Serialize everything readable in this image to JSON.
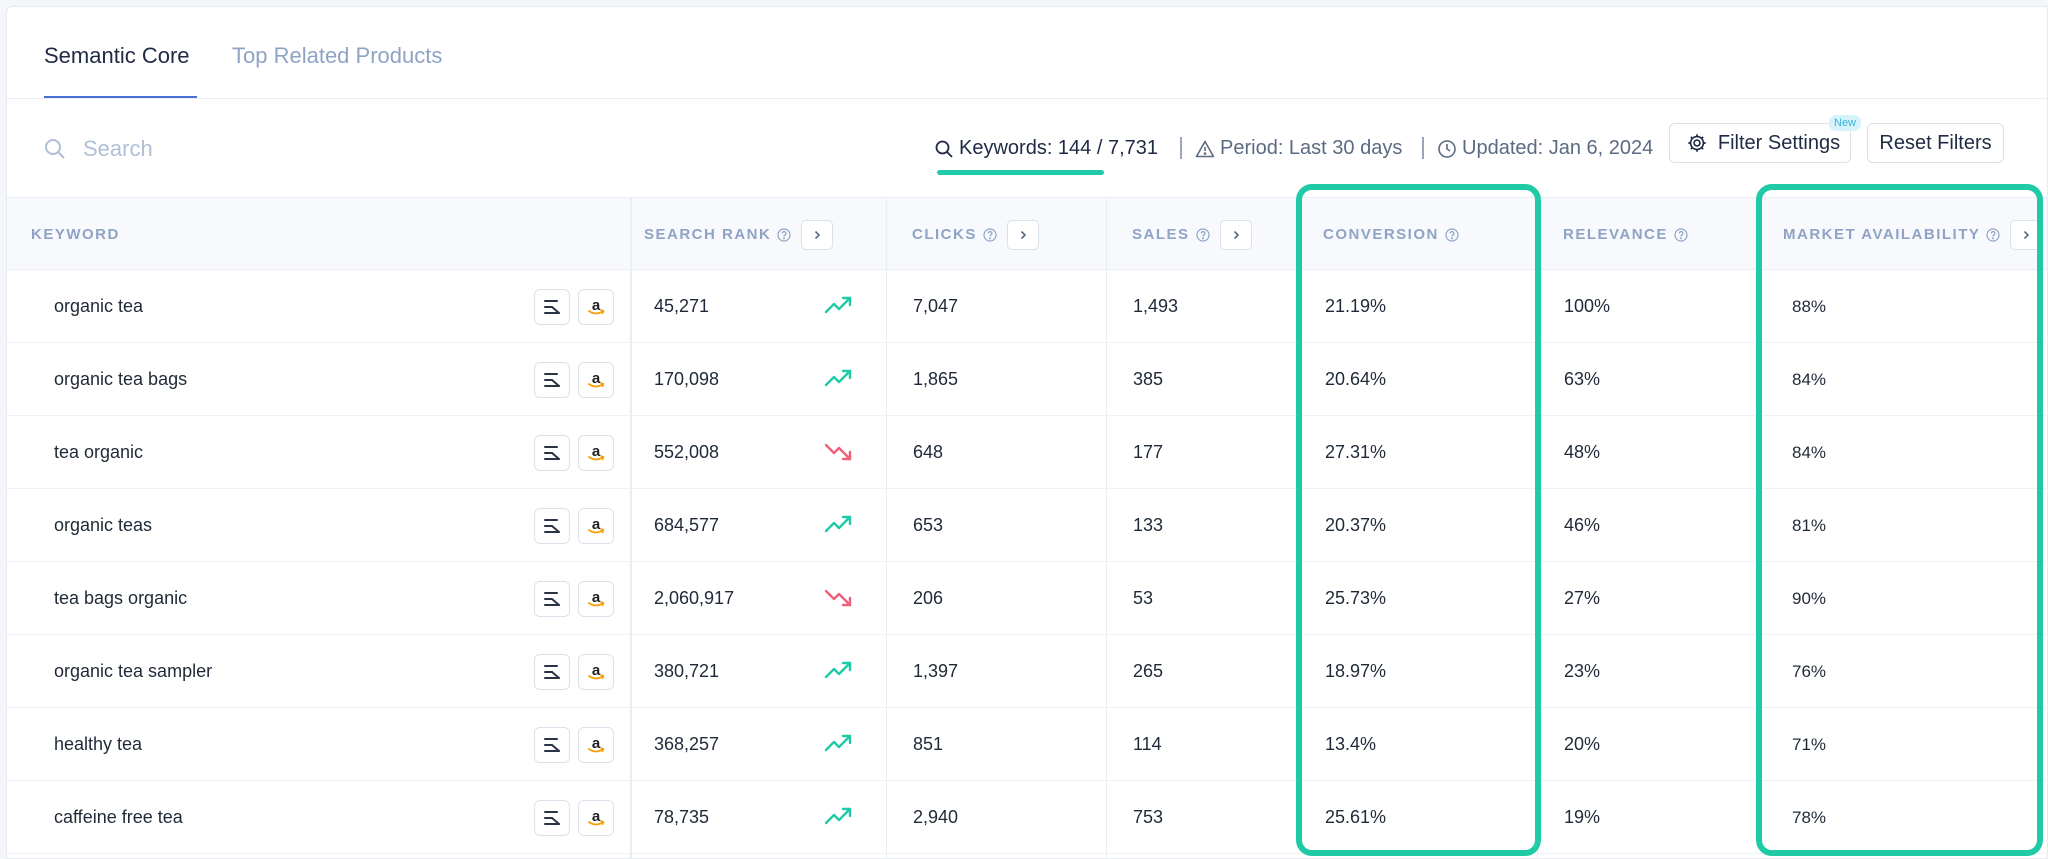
{
  "tabs": [
    {
      "label": "Semantic Core",
      "active": true
    },
    {
      "label": "Top Related Products",
      "active": false
    }
  ],
  "toolbar": {
    "search_placeholder": "Search",
    "keywords": "Keywords: 144 / 7,731",
    "period": "Period: Last 30 days",
    "updated": "Updated: Jan 6, 2024",
    "filter_settings": "Filter Settings",
    "new_badge": "New",
    "reset_filters": "Reset Filters"
  },
  "columns": {
    "keyword": "KEYWORD",
    "search_rank": "SEARCH RANK",
    "clicks": "CLICKS",
    "sales": "SALES",
    "conversion": "CONVERSION",
    "relevance": "RELEVANCE",
    "market_availability": "MARKET AVAILABILITY"
  },
  "colors": {
    "trend_up": "#1fcaa7",
    "trend_down": "#f0607a",
    "highlight": "#1fcaa7",
    "amazon_orange": "#f59e0b"
  },
  "rows": [
    {
      "keyword": "organic tea",
      "search_rank": "45,271",
      "trend": "up",
      "clicks": "7,047",
      "sales": "1,493",
      "conversion": "21.19%",
      "relevance": "100%",
      "market_availability": "88%"
    },
    {
      "keyword": "organic tea bags",
      "search_rank": "170,098",
      "trend": "up",
      "clicks": "1,865",
      "sales": "385",
      "conversion": "20.64%",
      "relevance": "63%",
      "market_availability": "84%"
    },
    {
      "keyword": "tea organic",
      "search_rank": "552,008",
      "trend": "down",
      "clicks": "648",
      "sales": "177",
      "conversion": "27.31%",
      "relevance": "48%",
      "market_availability": "84%"
    },
    {
      "keyword": "organic teas",
      "search_rank": "684,577",
      "trend": "up",
      "clicks": "653",
      "sales": "133",
      "conversion": "20.37%",
      "relevance": "46%",
      "market_availability": "81%"
    },
    {
      "keyword": "tea bags organic",
      "search_rank": "2,060,917",
      "trend": "down",
      "clicks": "206",
      "sales": "53",
      "conversion": "25.73%",
      "relevance": "27%",
      "market_availability": "90%"
    },
    {
      "keyword": "organic tea sampler",
      "search_rank": "380,721",
      "trend": "up",
      "clicks": "1,397",
      "sales": "265",
      "conversion": "18.97%",
      "relevance": "23%",
      "market_availability": "76%"
    },
    {
      "keyword": "healthy tea",
      "search_rank": "368,257",
      "trend": "up",
      "clicks": "851",
      "sales": "114",
      "conversion": "13.4%",
      "relevance": "20%",
      "market_availability": "71%"
    },
    {
      "keyword": "caffeine free tea",
      "search_rank": "78,735",
      "trend": "up",
      "clicks": "2,940",
      "sales": "753",
      "conversion": "25.61%",
      "relevance": "19%",
      "market_availability": "78%"
    }
  ]
}
